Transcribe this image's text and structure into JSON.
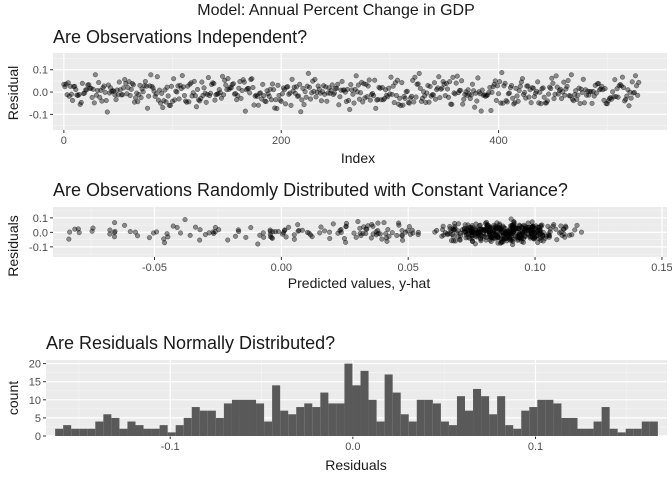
{
  "title": "Model: Annual Percent Change in GDP",
  "chart_data": [
    {
      "type": "scatter",
      "title": "Are Observations Independent?",
      "xlabel": "Index",
      "ylabel": "Residual",
      "xlim": [
        -10,
        555
      ],
      "ylim": [
        -0.17,
        0.175
      ],
      "xticks": [
        0,
        200,
        400
      ],
      "xtick_labels": [
        "0",
        "200",
        "400"
      ],
      "yticks": [
        -0.1,
        0.0,
        0.1
      ],
      "ytick_labels": [
        "-0.1",
        "0.0",
        "0.1"
      ],
      "grid": true,
      "point_count": 530,
      "x_range_observed": [
        0,
        530
      ],
      "y_range_observed": [
        -0.16,
        0.16
      ],
      "note_points_estimated": true
    },
    {
      "type": "scatter",
      "title": "Are Observations Randomly Distributed with Constant Variance?",
      "xlabel": "Predicted values, y-hat",
      "ylabel": "Residuals",
      "xlim": [
        -0.09,
        0.152
      ],
      "ylim": [
        -0.17,
        0.175
      ],
      "xticks": [
        -0.05,
        0.0,
        0.05,
        0.1,
        0.15
      ],
      "xtick_labels": [
        "-0.05",
        "0.00",
        "0.05",
        "0.10",
        "0.15"
      ],
      "yticks": [
        -0.1,
        0.0,
        0.1
      ],
      "ytick_labels": [
        "-0.1",
        "0.0",
        "0.1"
      ],
      "reference_line_y": 0,
      "grid": true,
      "point_count": 530,
      "note_points_estimated": true
    },
    {
      "type": "bar",
      "title": "Are Residuals Normally Distributed?",
      "xlabel": "Residuals",
      "ylabel": "count",
      "bin_start": -0.163,
      "bin_width": 0.0044,
      "counts": [
        2,
        3,
        2,
        2,
        2,
        4,
        6,
        5,
        2,
        4,
        3,
        2,
        2,
        3,
        1,
        3,
        5,
        8,
        7,
        7,
        5,
        9,
        10,
        10,
        10,
        9,
        4,
        14,
        7,
        6,
        8,
        9,
        8,
        12,
        9,
        9,
        20,
        14,
        18,
        10,
        4,
        17,
        12,
        6,
        4,
        10,
        10,
        9,
        4,
        3,
        11,
        7,
        13,
        11,
        6,
        11,
        3,
        2,
        7,
        8,
        10,
        10,
        9,
        5,
        5,
        2,
        2,
        4,
        8,
        2,
        1,
        2,
        2,
        4,
        4
      ],
      "xlim": [
        -0.168,
        0.172
      ],
      "ylim": [
        0,
        21
      ],
      "xticks": [
        -0.1,
        0.0,
        0.1
      ],
      "xtick_labels": [
        "-0.1",
        "0.0",
        "0.1"
      ],
      "yticks": [
        0,
        5,
        10,
        15,
        20
      ],
      "ytick_labels": [
        "0",
        "5",
        "10",
        "15",
        "20"
      ],
      "grid": true
    }
  ]
}
